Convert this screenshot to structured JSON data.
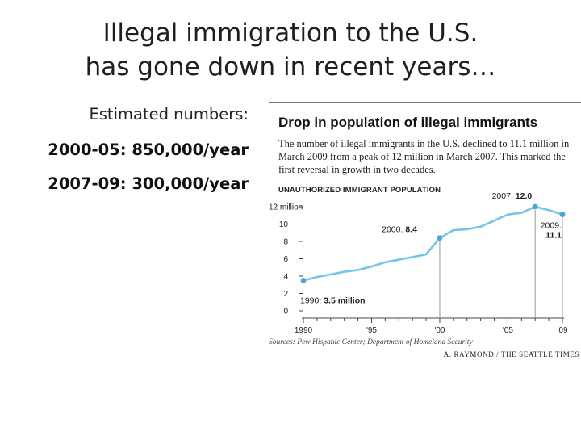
{
  "slide": {
    "title_line1": "Illegal immigration to the U.S.",
    "title_line2": "has gone down in recent years…",
    "estimated_label": "Estimated numbers:",
    "stats": [
      "2000-05: 850,000/year",
      "2007-09: 300,000/year"
    ]
  },
  "figure": {
    "title": "Drop in population of illegal immigrants",
    "description": "The number of illegal immigrants in the U.S. declined to 11.1 million in March 2009 from a peak of 12 million in March 2007. This marked the first reversal in growth in two decades.",
    "subhead": "UNAUTHORIZED IMMIGRANT POPULATION",
    "source": "Sources: Pew Hispanic Center; Department of Homeland Security",
    "credit": "A. RAYMOND / THE SEATTLE TIMES",
    "colors": {
      "line": "#74c6e6",
      "marker": "#4ea6d6",
      "axis": "#444444",
      "grid": "#999999"
    }
  },
  "chart_data": {
    "type": "line",
    "title": "Drop in population of illegal immigrants",
    "subtitle": "UNAUTHORIZED IMMIGRANT POPULATION",
    "ylabel": "",
    "xlabel": "",
    "x": [
      1990,
      1991,
      1992,
      1993,
      1994,
      1995,
      1996,
      1997,
      1998,
      1999,
      2000,
      2001,
      2002,
      2003,
      2004,
      2005,
      2006,
      2007,
      2008,
      2009
    ],
    "series": [
      {
        "values": [
          3.5,
          3.9,
          4.2,
          4.5,
          4.7,
          5.1,
          5.6,
          5.9,
          6.2,
          6.5,
          8.4,
          9.3,
          9.4,
          9.7,
          10.4,
          11.1,
          11.3,
          12.0,
          11.6,
          11.1
        ]
      }
    ],
    "ylim": [
      0,
      12
    ],
    "xlim": [
      1990,
      2009
    ],
    "yticks": [
      0,
      2,
      4,
      6,
      8,
      10,
      12
    ],
    "ytick_labels": [
      "0",
      "2",
      "4",
      "6",
      "8",
      "10",
      "12 million"
    ],
    "xtick_labels": [
      {
        "x": 1990,
        "label": "1990"
      },
      {
        "x": 1995,
        "label": "'95"
      },
      {
        "x": 2000,
        "label": "'00"
      },
      {
        "x": 2005,
        "label": "'05"
      },
      {
        "x": 2009,
        "label": "'09"
      }
    ],
    "annotations": [
      {
        "x": 1990,
        "y": 3.5,
        "prefix": "1990:",
        "value": "3.5 million"
      },
      {
        "x": 2000,
        "y": 8.4,
        "prefix": "2000:",
        "value": "8.4"
      },
      {
        "x": 2007,
        "y": 12.0,
        "prefix": "2007:",
        "value": "12.0"
      },
      {
        "x": 2009,
        "y": 11.1,
        "prefix": "2009:",
        "value": "11.1"
      }
    ],
    "grid": false,
    "legend": "none"
  }
}
